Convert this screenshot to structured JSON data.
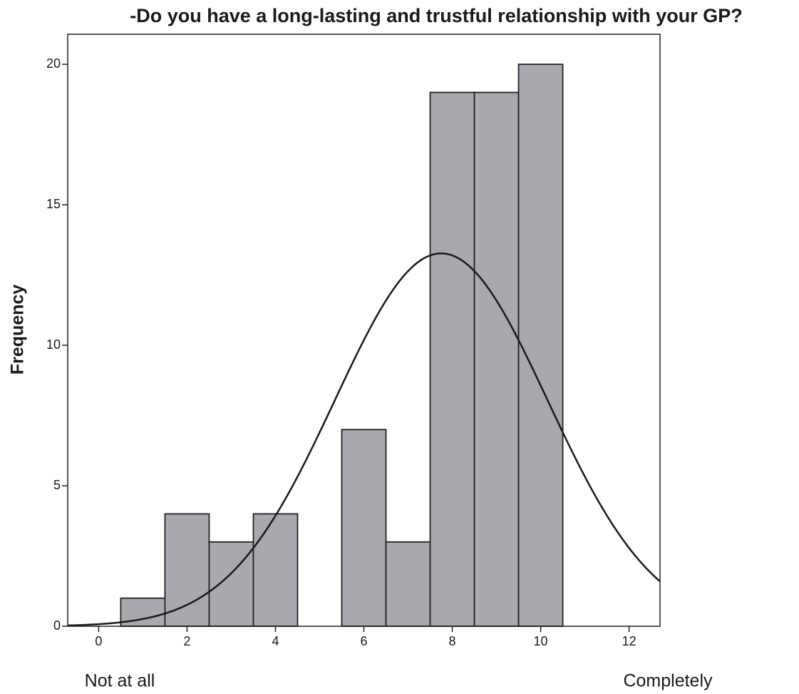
{
  "chart_data": {
    "type": "histogram",
    "title": "-Do you have a long-lasting and trustful relationship with your GP?",
    "y_label": "Frequency",
    "annotations": [
      "Not at all",
      "Completely"
    ],
    "bins": [
      0.5,
      1.5,
      2.5,
      3.5,
      4.5,
      5.5,
      6.5,
      7.5,
      8.5,
      9.5,
      10.5
    ],
    "values": [
      1,
      4,
      3,
      4,
      0,
      7,
      3,
      19,
      19,
      20
    ],
    "color": "#a8a9ae",
    "normal_curve": true,
    "xlim": [
      -0.7,
      12.7
    ],
    "xticks": [
      0,
      2,
      4,
      6,
      8,
      10,
      12
    ],
    "ylim": [
      0,
      21.07
    ],
    "yticks": [
      0,
      5,
      10,
      15,
      20
    ]
  }
}
